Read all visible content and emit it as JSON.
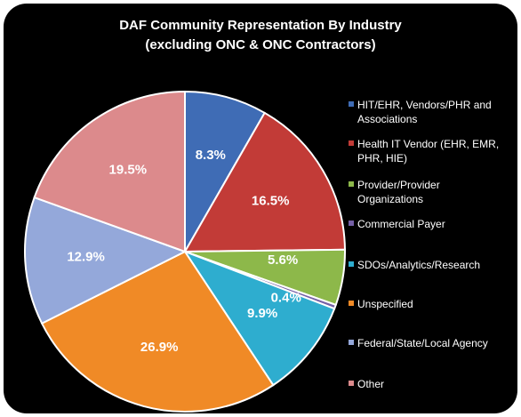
{
  "chart_data": {
    "type": "pie",
    "title": "DAF Community Representation By Industry",
    "subtitle": "(excluding ONC & ONC Contractors)",
    "legend_position": "right",
    "slices": [
      {
        "name": "HIT/EHR, Vendors/PHR and Associations",
        "value": 8.3,
        "label": "8.3%",
        "color": "#3F6CB5"
      },
      {
        "name": "Health IT Vendor (EHR, EMR, PHR, HIE)",
        "value": 16.5,
        "label": "16.5%",
        "color": "#C23B37"
      },
      {
        "name": "Provider/Provider Organizations",
        "value": 5.6,
        "label": "5.6%",
        "color": "#8DB84A"
      },
      {
        "name": "Commercial Payer",
        "value": 0.4,
        "label": "0.4%",
        "color": "#7560A6"
      },
      {
        "name": "SDOs/Analytics/Research",
        "value": 9.9,
        "label": "9.9%",
        "color": "#2EADCF"
      },
      {
        "name": "Unspecified",
        "value": 26.9,
        "label": "26.9%",
        "color": "#F08A26"
      },
      {
        "name": "Federal/State/Local Agency",
        "value": 12.9,
        "label": "12.9%",
        "color": "#94A8DA"
      },
      {
        "name": "Other",
        "value": 19.5,
        "label": "19.5%",
        "color": "#DC8A8C"
      }
    ]
  }
}
